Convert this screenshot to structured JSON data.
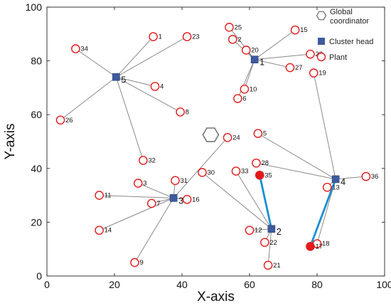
{
  "chart_data": {
    "type": "scatter",
    "xlabel": "X-axis",
    "ylabel": "Y-axis",
    "xlim": [
      0,
      100
    ],
    "ylim": [
      0,
      100
    ],
    "xticks": [
      0,
      20,
      40,
      60,
      80,
      100
    ],
    "yticks": [
      0,
      20,
      40,
      60,
      80,
      100
    ],
    "grid": false,
    "legend": {
      "placement": "top-right",
      "entries": [
        {
          "key": "coordinator",
          "label_lines": [
            "Global",
            "coordinator"
          ]
        },
        {
          "key": "head",
          "label_lines": [
            "Cluster head"
          ]
        },
        {
          "key": "plant",
          "label_lines": [
            "Plant"
          ]
        }
      ]
    },
    "coordinator": {
      "x": 48.5,
      "y": 52.5
    },
    "cluster_heads": [
      {
        "label": "1",
        "x": 61.5,
        "y": 80.5
      },
      {
        "label": "2",
        "x": 66.5,
        "y": 17.5
      },
      {
        "label": "3",
        "x": 37.5,
        "y": 29
      },
      {
        "label": "4",
        "x": 85.5,
        "y": 36
      },
      {
        "label": "5",
        "x": 20.5,
        "y": 74
      }
    ],
    "plants": [
      {
        "label": "1",
        "x": 31.5,
        "y": 89,
        "head": "5"
      },
      {
        "label": "23",
        "x": 41.5,
        "y": 89,
        "head": "5"
      },
      {
        "label": "34",
        "x": 8.5,
        "y": 84.5,
        "head": "5"
      },
      {
        "label": "4",
        "x": 32,
        "y": 70.5,
        "head": "5"
      },
      {
        "label": "8",
        "x": 39.5,
        "y": 61,
        "head": "5"
      },
      {
        "label": "26",
        "x": 4,
        "y": 58,
        "head": "5"
      },
      {
        "label": "32",
        "x": 28.5,
        "y": 43,
        "head": "5"
      },
      {
        "label": "25",
        "x": 54,
        "y": 92.5,
        "head": "1"
      },
      {
        "label": "2",
        "x": 55,
        "y": 88,
        "head": "1"
      },
      {
        "label": "20",
        "x": 59,
        "y": 84,
        "head": "1"
      },
      {
        "label": "15",
        "x": 73.5,
        "y": 91.5,
        "head": "1"
      },
      {
        "label": "29",
        "x": 78,
        "y": 82.5,
        "head": "1"
      },
      {
        "label": "27",
        "x": 72,
        "y": 77.5,
        "head": "1"
      },
      {
        "label": "10",
        "x": 58.5,
        "y": 69.5,
        "head": "1"
      },
      {
        "label": "6",
        "x": 56.5,
        "y": 66,
        "head": "1"
      },
      {
        "label": "19",
        "x": 79,
        "y": 75.5,
        "head": "4"
      },
      {
        "label": "24",
        "x": 53.5,
        "y": 51.5,
        "head": "3"
      },
      {
        "label": "5",
        "x": 62.5,
        "y": 53,
        "head": "4"
      },
      {
        "label": "28",
        "x": 62,
        "y": 42,
        "head": "4"
      },
      {
        "label": "36",
        "x": 94.5,
        "y": 37,
        "head": "4"
      },
      {
        "label": "13",
        "x": 83,
        "y": 33,
        "head": "4"
      },
      {
        "label": "18",
        "x": 80,
        "y": 12,
        "head": "4"
      },
      {
        "label": "17",
        "x": 78,
        "y": 11,
        "head": "4",
        "filled": true
      },
      {
        "label": "35",
        "x": 63,
        "y": 37.5,
        "head": "2",
        "filled": true
      },
      {
        "label": "33",
        "x": 56,
        "y": 39,
        "head": "2"
      },
      {
        "label": "30",
        "x": 46,
        "y": 38.5,
        "head": "2"
      },
      {
        "label": "12",
        "x": 60,
        "y": 17,
        "head": "2"
      },
      {
        "label": "22",
        "x": 64.5,
        "y": 12.5,
        "head": "2"
      },
      {
        "label": "21",
        "x": 65.5,
        "y": 4,
        "head": "2"
      },
      {
        "label": "31",
        "x": 38,
        "y": 35.5,
        "head": "3"
      },
      {
        "label": "3",
        "x": 27,
        "y": 34.5,
        "head": "3"
      },
      {
        "label": "11",
        "x": 15.5,
        "y": 30,
        "head": "3"
      },
      {
        "label": "7",
        "x": 31,
        "y": 27,
        "head": "3"
      },
      {
        "label": "16",
        "x": 41.5,
        "y": 28.5,
        "head": "3"
      },
      {
        "label": "14",
        "x": 15.5,
        "y": 17,
        "head": "3"
      },
      {
        "label": "9",
        "x": 26,
        "y": 5,
        "head": "3"
      }
    ],
    "highlighted_links": [
      {
        "from": "35",
        "to": "2"
      },
      {
        "from": "17",
        "to": "4"
      }
    ],
    "colors": {
      "plant": "#e21a1a",
      "head": "#3f5a9e",
      "link": "#8a8a8a",
      "highlight": "#1a8fd1",
      "coordinator": "#777777"
    }
  }
}
